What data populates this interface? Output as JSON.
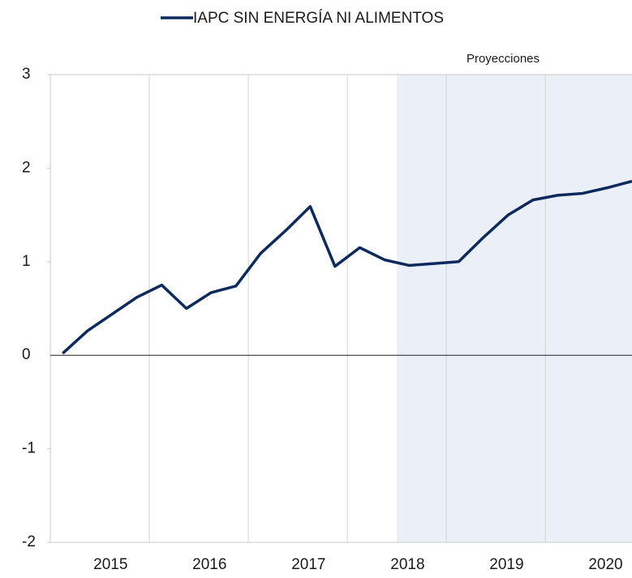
{
  "chart_data": {
    "type": "line",
    "categories": [
      null,
      null,
      "2015",
      null,
      null,
      null,
      "2016",
      null,
      null,
      null,
      "2017",
      null,
      null,
      null,
      "2018",
      null,
      null,
      null,
      "2019",
      null,
      null,
      null,
      "2020",
      null
    ],
    "series": [
      {
        "name": "IAPC SIN ENERGÍA NI ALIMENTOS",
        "color": "#0d2a5c",
        "values": [
          0.02,
          0.26,
          0.44,
          0.62,
          0.75,
          0.5,
          0.67,
          0.74,
          1.09,
          1.33,
          1.59,
          0.95,
          1.15,
          1.02,
          0.96,
          0.98,
          1.0,
          1.26,
          1.5,
          1.66,
          1.71,
          1.73,
          1.79,
          1.86
        ]
      }
    ],
    "ylim": [
      -2,
      3
    ],
    "yticks": [
      -2,
      -1,
      0,
      1,
      2,
      3
    ],
    "annotation": "Proyecciones",
    "shaded_from": 14,
    "grid": true,
    "legend": "top"
  }
}
